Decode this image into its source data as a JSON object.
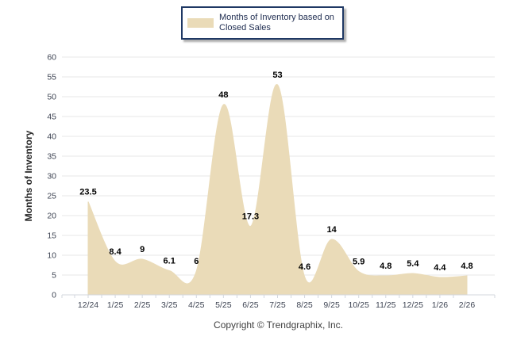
{
  "legend": {
    "label": "Months of Inventory based on Closed Sales",
    "swatch_color": "#EADBB8",
    "border_color": "#1F3864"
  },
  "footer": {
    "text": "Copyright © Trendgraphix, Inc."
  },
  "chart_data": {
    "type": "area",
    "title": "",
    "legend_entries": [
      "Months of Inventory based on Closed Sales"
    ],
    "legend_position": "top",
    "categories": [
      "12/24",
      "1/25",
      "2/25",
      "3/25",
      "4/25",
      "5/25",
      "6/25",
      "7/25",
      "8/25",
      "9/25",
      "10/25",
      "11/25",
      "12/25",
      "1/26",
      "2/26"
    ],
    "values": [
      23.5,
      8.4,
      9,
      6.1,
      6,
      48,
      17.3,
      53,
      4.6,
      14,
      5.9,
      4.8,
      5.4,
      4.4,
      4.8
    ],
    "data_labels": [
      "23.5",
      "8.4",
      "9",
      "6.1",
      "6",
      "48",
      "17.3",
      "53",
      "4.6",
      "14",
      "5.9",
      "4.8",
      "5.4",
      "4.4",
      "4.8"
    ],
    "xlabel": "",
    "ylabel": "Months of Inventory",
    "ylim": [
      0,
      60
    ],
    "yticks": [
      0,
      5,
      10,
      15,
      20,
      25,
      30,
      35,
      40,
      45,
      50,
      55,
      60
    ],
    "grid": true,
    "smooth": true,
    "fill_color": "#EADBB8",
    "grid_color": "#E7E7E7",
    "axis_color": "#D3D7DE",
    "tick_label_color": "#3E4453",
    "data_label_color": "#000000"
  }
}
